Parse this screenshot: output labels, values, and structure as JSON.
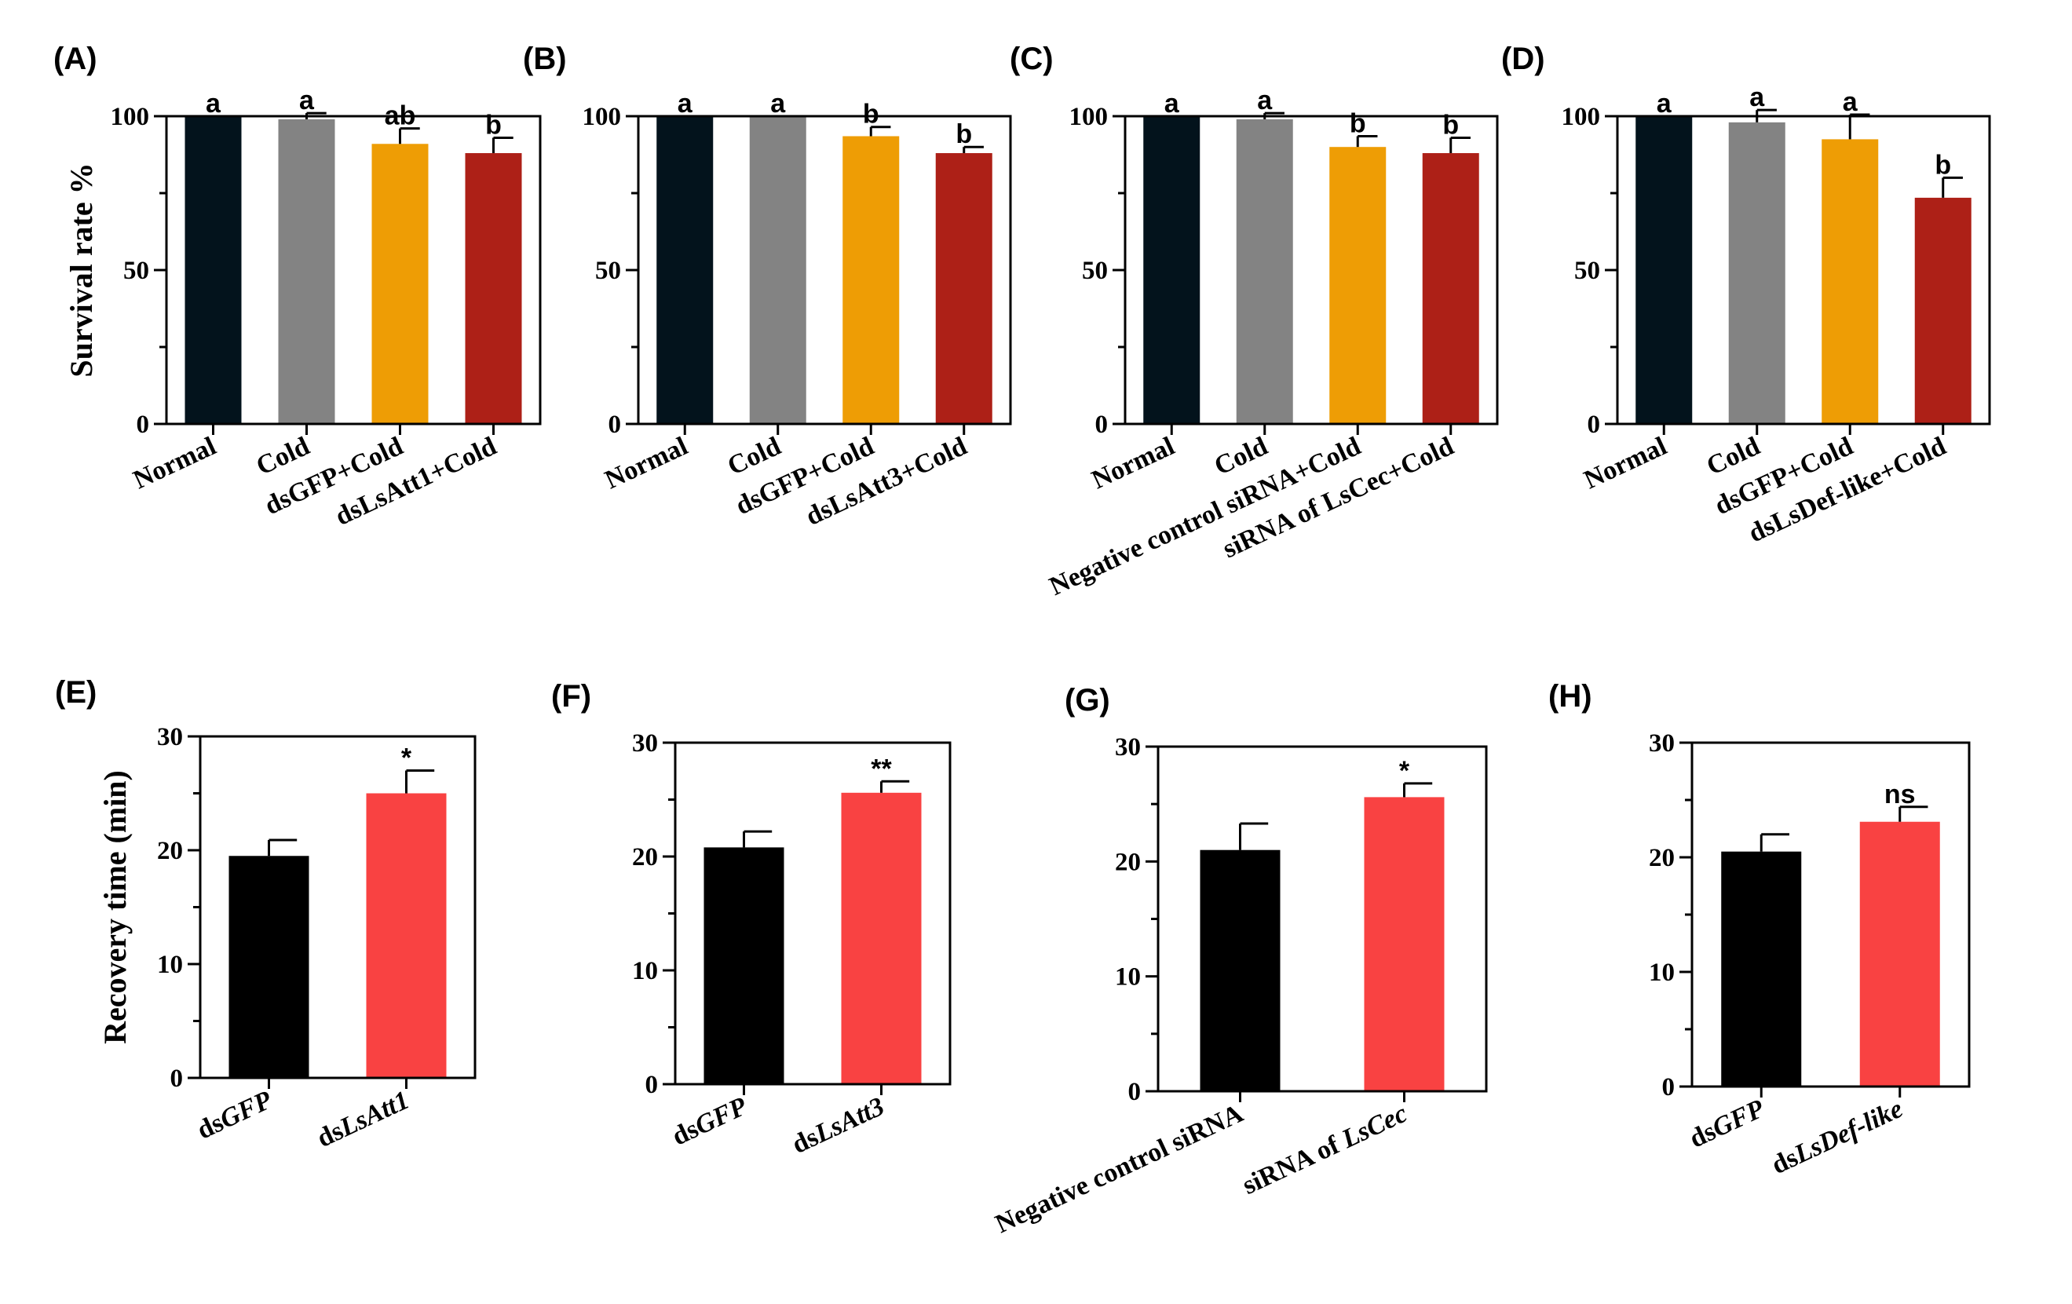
{
  "colors": {
    "normal": "#03131c",
    "cold": "#838383",
    "gfp_cold": "#ee9d05",
    "treat_cold": "#ad2017",
    "control": "#000000",
    "treat": "#f94242"
  },
  "chart_data": [
    {
      "panel": "(A)",
      "type": "bar",
      "ylabel": "Survival rate %",
      "ylim": [
        0,
        100
      ],
      "yticks": [
        0,
        50,
        100
      ],
      "categories": [
        "Normal",
        "Cold",
        "dsGFP+Cold",
        "dsLsAtt1+Cold"
      ],
      "values": [
        100,
        99,
        91,
        88
      ],
      "errors": [
        0,
        2,
        5,
        5
      ],
      "sig": [
        "a",
        "a",
        "ab",
        "b"
      ],
      "colors": [
        "#03131c",
        "#838383",
        "#ee9d05",
        "#ad2017"
      ]
    },
    {
      "panel": "(B)",
      "type": "bar",
      "ylabel": "",
      "ylim": [
        0,
        100
      ],
      "yticks": [
        0,
        50,
        100
      ],
      "categories": [
        "Normal",
        "Cold",
        "dsGFP+Cold",
        "dsLsAtt3+Cold"
      ],
      "values": [
        100,
        100,
        93.5,
        88
      ],
      "errors": [
        0,
        0,
        3,
        2
      ],
      "sig": [
        "a",
        "a",
        "b",
        "b"
      ],
      "colors": [
        "#03131c",
        "#838383",
        "#ee9d05",
        "#ad2017"
      ]
    },
    {
      "panel": "(C)",
      "type": "bar",
      "ylabel": "",
      "ylim": [
        0,
        100
      ],
      "yticks": [
        0,
        50,
        100
      ],
      "categories": [
        "Normal",
        "Cold",
        "Negative control siRNA+Cold",
        "siRNA of LsCec+Cold"
      ],
      "values": [
        100,
        99,
        90,
        88
      ],
      "errors": [
        0,
        2,
        3.5,
        5
      ],
      "sig": [
        "a",
        "a",
        "b",
        "b"
      ],
      "colors": [
        "#03131c",
        "#838383",
        "#ee9d05",
        "#ad2017"
      ]
    },
    {
      "panel": "(D)",
      "type": "bar",
      "ylabel": "",
      "ylim": [
        0,
        100
      ],
      "yticks": [
        0,
        50,
        100
      ],
      "categories": [
        "Normal",
        "Cold",
        "dsGFP+Cold",
        "dsLsDef-like+Cold"
      ],
      "values": [
        100,
        98,
        92.5,
        73.5
      ],
      "errors": [
        0,
        4,
        8,
        6.5
      ],
      "sig": [
        "a",
        "a",
        "a",
        "b"
      ],
      "colors": [
        "#03131c",
        "#838383",
        "#ee9d05",
        "#ad2017"
      ]
    },
    {
      "panel": "(E)",
      "type": "bar",
      "ylabel": "Recovery time (min)",
      "ylim": [
        0,
        30
      ],
      "yticks": [
        0,
        10,
        20,
        30
      ],
      "categories": [
        "dsGFP",
        "dsLsAtt1"
      ],
      "values": [
        19.5,
        25
      ],
      "errors": [
        1.4,
        2
      ],
      "sig": [
        "",
        "*"
      ],
      "colors": [
        "#000000",
        "#f94242"
      ]
    },
    {
      "panel": "(F)",
      "type": "bar",
      "ylabel": "",
      "ylim": [
        0,
        30
      ],
      "yticks": [
        0,
        10,
        20,
        30
      ],
      "categories": [
        "dsGFP",
        "dsLsAtt3"
      ],
      "values": [
        20.8,
        25.6
      ],
      "errors": [
        1.4,
        1
      ],
      "sig": [
        "",
        "**"
      ],
      "colors": [
        "#000000",
        "#f94242"
      ]
    },
    {
      "panel": "(G)",
      "type": "bar",
      "ylabel": "",
      "ylim": [
        0,
        30
      ],
      "yticks": [
        0,
        10,
        20,
        30
      ],
      "categories": [
        "Negative control siRNA",
        "siRNA of LsCec"
      ],
      "values": [
        21,
        25.6
      ],
      "errors": [
        2.3,
        1.2
      ],
      "sig": [
        "",
        "*"
      ],
      "colors": [
        "#000000",
        "#f94242"
      ]
    },
    {
      "panel": "(H)",
      "type": "bar",
      "ylabel": "",
      "ylim": [
        0,
        30
      ],
      "yticks": [
        0,
        10,
        20,
        30
      ],
      "categories": [
        "dsGFP",
        "dsLsDef-like"
      ],
      "values": [
        20.5,
        23.1
      ],
      "errors": [
        1.5,
        1.3
      ],
      "sig": [
        "",
        "ns"
      ],
      "colors": [
        "#000000",
        "#f94242"
      ]
    }
  ]
}
